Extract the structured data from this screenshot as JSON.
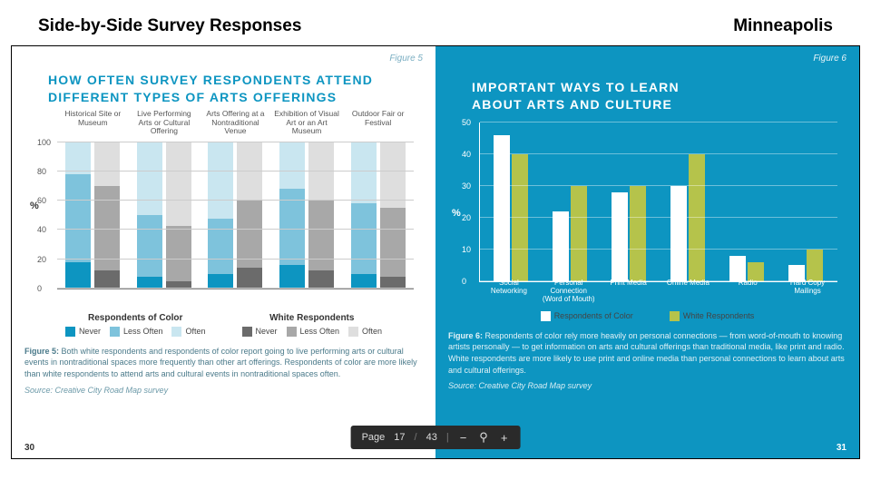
{
  "header": {
    "left": "Side-by-Side Survey Responses",
    "right": "Minneapolis"
  },
  "toolbar": {
    "page_word": "Page",
    "page_current": "17",
    "page_sep": "/",
    "page_total": "43",
    "minus": "−",
    "zoom_icon": "⚲",
    "plus": "+"
  },
  "left": {
    "fig_label": "Figure 5",
    "title_l1": "HOW OFTEN SURVEY RESPONDENTS ATTEND",
    "title_l2": "DIFFERENT TYPES OF ARTS OFFERINGS",
    "ylabel": "%",
    "ylim": [
      0,
      100
    ],
    "ytick_step": 20,
    "categories": [
      "Historical Site or Museum",
      "Live Performing Arts or Cultural Offering",
      "Arts Offering at a Nontraditional Venue",
      "Exhibition of Visual Art or an Art Museum",
      "Outdoor Fair or Festival"
    ],
    "colors": {
      "color_never": "#0d95c1",
      "color_less": "#7ec3dc",
      "color_often": "#c9e6f0",
      "white_never": "#6b6b6b",
      "white_less": "#a8a8a8",
      "white_often": "#dedede"
    },
    "series": [
      {
        "c": {
          "never": 18,
          "less": 60,
          "often": 22
        },
        "w": {
          "never": 12,
          "less": 58,
          "often": 30
        }
      },
      {
        "c": {
          "never": 8,
          "less": 42,
          "often": 50
        },
        "w": {
          "never": 5,
          "less": 38,
          "often": 57
        }
      },
      {
        "c": {
          "never": 10,
          "less": 38,
          "often": 52
        },
        "w": {
          "never": 14,
          "less": 46,
          "often": 40
        }
      },
      {
        "c": {
          "never": 16,
          "less": 52,
          "often": 32
        },
        "w": {
          "never": 12,
          "less": 48,
          "often": 40
        }
      },
      {
        "c": {
          "never": 10,
          "less": 48,
          "often": 42
        },
        "w": {
          "never": 8,
          "less": 47,
          "often": 45
        }
      }
    ],
    "legend": {
      "group_color": "Respondents of Color",
      "group_white": "White Respondents",
      "never": "Never",
      "less": "Less Often",
      "often": "Often"
    },
    "caption_label": "Figure 5:",
    "caption": " Both white respondents and respondents of color report going to live performing arts or cultural events in nontraditional spaces more frequently than other art offerings. Respondents of color are more likely than white respondents to attend arts and cultural events in nontraditional spaces often.",
    "source": "Source: Creative City Road Map survey",
    "pagenum": "30"
  },
  "right": {
    "fig_label": "Figure 6",
    "title_l1": "IMPORTANT WAYS TO LEARN",
    "title_l2": "ABOUT ARTS AND CULTURE",
    "ylabel": "%",
    "ylim": [
      0,
      50
    ],
    "ytick_step": 10,
    "categories": [
      "Social Networking",
      "Personal Connection (Word of Mouth)",
      "Print Media",
      "Online Media",
      "Radio",
      "Hard Copy Mailings"
    ],
    "colors": {
      "roc": "#ffffff",
      "white": "#b5c34b"
    },
    "series": [
      {
        "roc": 46,
        "white": 40
      },
      {
        "roc": 22,
        "white": 30
      },
      {
        "roc": 28,
        "white": 30
      },
      {
        "roc": 30,
        "white": 40
      },
      {
        "roc": 8,
        "white": 6
      },
      {
        "roc": 5,
        "white": 10
      }
    ],
    "legend": {
      "roc": "Respondents of Color",
      "white": "White Respondents"
    },
    "caption_label": "Figure 6:",
    "caption": " Respondents of color rely more heavily on personal connections — from word-of-mouth to knowing artists personally — to get information on arts and cultural offerings than traditional media, like print and radio. White respondents are more likely to use print and online media than personal connections to learn about arts and cultural offerings.",
    "source": "Source: Creative City Road Map survey",
    "pagenum": "31"
  }
}
